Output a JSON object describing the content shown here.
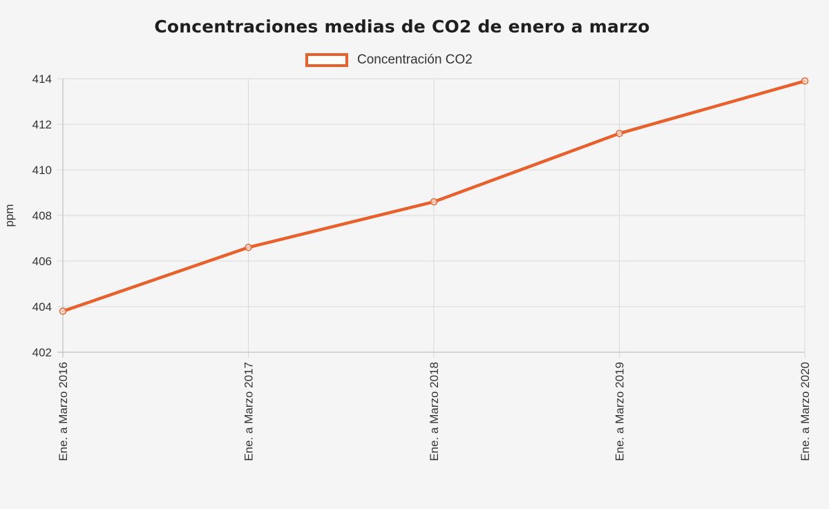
{
  "chart_data": {
    "type": "line",
    "title": "Concentraciones medias de CO2 de enero a marzo",
    "xlabel": "",
    "ylabel": "ppm",
    "categories": [
      "Ene. a Marzo 2016",
      "Ene. a Marzo 2017",
      "Ene. a Marzo 2018",
      "Ene. a Marzo 2019",
      "Ene. a Marzo 2020"
    ],
    "series": [
      {
        "name": "Concentración CO2",
        "values": [
          403.8,
          406.6,
          408.6,
          411.6,
          413.9
        ]
      }
    ],
    "ylim": [
      402,
      414
    ],
    "yticks": [
      402,
      404,
      406,
      408,
      410,
      412,
      414
    ],
    "grid": true,
    "legend_position": "top",
    "colors": {
      "line": "#e8602c",
      "grid": "#d9d9d9",
      "axis": "#b5b5b5",
      "text": "#333333",
      "background": "#f5f5f5"
    }
  }
}
